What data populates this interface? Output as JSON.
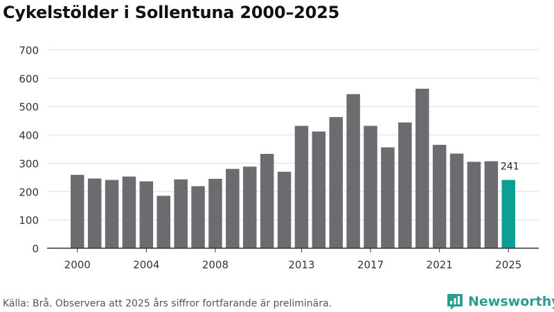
{
  "title": "Cykelstölder i Sollentuna 2000–2025",
  "source": "Källa: Brå. Observera att 2025 års siffror fortfarande är preliminära.",
  "brand": {
    "name": "Newsworthy",
    "icon": "bar-chart-logo-icon"
  },
  "colors": {
    "bar": "#6d6b70",
    "highlight": "#0e9e94",
    "grid": "#dddddd",
    "axis": "#333333",
    "brand": "#2a9d8f"
  },
  "chart_data": {
    "type": "bar",
    "title": "Cykelstölder i Sollentuna 2000–2025",
    "xlabel": "",
    "ylabel": "",
    "ylim": [
      0,
      700
    ],
    "yticks": [
      0,
      100,
      200,
      300,
      400,
      500,
      600,
      700
    ],
    "categories": [
      "2000",
      "2001",
      "2002",
      "2003",
      "2004",
      "2005",
      "2006",
      "2007",
      "2008",
      "2009",
      "2010",
      "2011",
      "2012",
      "2013",
      "2014",
      "2015",
      "2016",
      "2017",
      "2018",
      "2019",
      "2020",
      "2021",
      "2022",
      "2023",
      "2024",
      "2025"
    ],
    "xtick_labels": [
      "2000",
      "2004",
      "2008",
      "2013",
      "2017",
      "2021",
      "2025"
    ],
    "values": [
      259,
      246,
      241,
      253,
      236,
      185,
      243,
      219,
      245,
      280,
      288,
      333,
      270,
      432,
      412,
      463,
      544,
      432,
      356,
      444,
      563,
      365,
      334,
      305,
      307,
      241
    ],
    "highlight_index": 25,
    "annotations": [
      {
        "category": "2025",
        "text": "241"
      }
    ],
    "grid": true
  }
}
